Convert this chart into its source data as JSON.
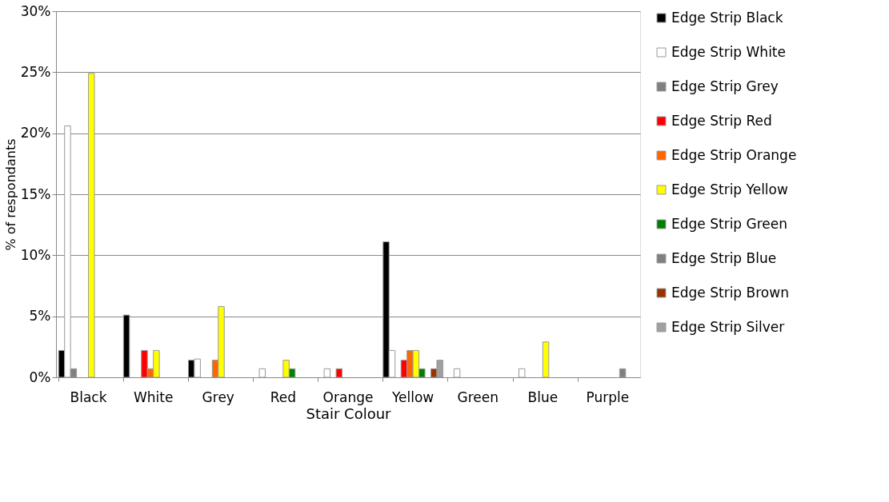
{
  "chart_data": {
    "type": "bar",
    "xlabel": "Stair Colour",
    "ylabel": "% of respondants",
    "categories": [
      "Black",
      "White",
      "Grey",
      "Red",
      "Orange",
      "Yellow",
      "Green",
      "Blue",
      "Purple"
    ],
    "series": [
      {
        "name": "Edge Strip Black",
        "color": "#000000",
        "values": [
          2.2,
          5.1,
          1.4,
          null,
          null,
          11.1,
          null,
          null,
          null
        ]
      },
      {
        "name": "Edge Strip White",
        "color": "#ffffff",
        "values": [
          20.6,
          null,
          1.5,
          0.7,
          0.7,
          2.2,
          0.7,
          0.7,
          null
        ]
      },
      {
        "name": "Edge Strip Grey",
        "color": "#808080",
        "values": [
          0.7,
          null,
          null,
          null,
          null,
          null,
          null,
          null,
          null
        ]
      },
      {
        "name": "Edge Strip Red",
        "color": "#ff0000",
        "values": [
          null,
          2.2,
          null,
          null,
          0.7,
          1.4,
          null,
          null,
          null
        ]
      },
      {
        "name": "Edge Strip Orange",
        "color": "#ff6600",
        "values": [
          null,
          0.7,
          1.4,
          null,
          null,
          2.2,
          null,
          null,
          null
        ]
      },
      {
        "name": "Edge Strip Yellow",
        "color": "#ffff00",
        "values": [
          24.9,
          2.2,
          5.8,
          1.4,
          null,
          2.2,
          null,
          2.9,
          null
        ]
      },
      {
        "name": "Edge Strip Green",
        "color": "#008000",
        "values": [
          null,
          null,
          null,
          0.7,
          null,
          0.7,
          null,
          null,
          null
        ]
      },
      {
        "name": "Edge Strip Blue",
        "color": "#808080",
        "values": [
          null,
          null,
          null,
          null,
          null,
          null,
          null,
          null,
          0.7
        ]
      },
      {
        "name": "Edge Strip Brown",
        "color": "#993300",
        "values": [
          null,
          null,
          null,
          null,
          null,
          0.7,
          null,
          null,
          null
        ]
      },
      {
        "name": "Edge Strip Silver",
        "color": "#a0a0a0",
        "values": [
          null,
          null,
          null,
          null,
          null,
          1.4,
          null,
          null,
          null
        ]
      }
    ],
    "ylim": [
      0,
      30
    ],
    "yticks": [
      {
        "value": 0,
        "label": "0%"
      },
      {
        "value": 5,
        "label": "5%"
      },
      {
        "value": 10,
        "label": "10%"
      },
      {
        "value": 15,
        "label": "15%"
      },
      {
        "value": 20,
        "label": "20%"
      },
      {
        "value": 25,
        "label": "25%"
      },
      {
        "value": 30,
        "label": "30%"
      }
    ],
    "grid": "y",
    "legend": "right"
  }
}
